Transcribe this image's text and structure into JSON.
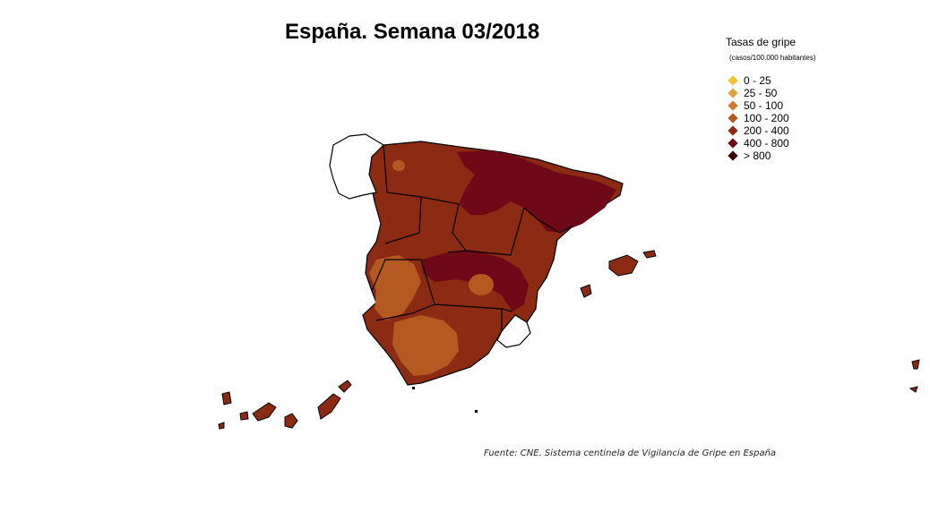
{
  "title": "España. Semana 03/2018",
  "legend": {
    "title": "Tasas de gripe",
    "subtitle": "(casos/100.000 habitantes)",
    "items": [
      {
        "label": "0 - 25",
        "color": "#f2c12e"
      },
      {
        "label": "25 - 50",
        "color": "#e0a040"
      },
      {
        "label": "50 - 100",
        "color": "#cc7a2e"
      },
      {
        "label": "100 - 200",
        "color": "#b35a22"
      },
      {
        "label": "200 - 400",
        "color": "#8b2b14"
      },
      {
        "label": "400 - 800",
        "color": "#6e0a18"
      },
      {
        "label": "> 800",
        "color": "#3a0008"
      }
    ]
  },
  "source": "Fuente: CNE. Sistema centinela de Vigilancia de Gripe en España",
  "colors": {
    "rate_100_200": "#b35a22",
    "rate_200_400": "#8b2b14",
    "rate_400_800": "#6e0a18",
    "no_data": "#ffffff"
  }
}
